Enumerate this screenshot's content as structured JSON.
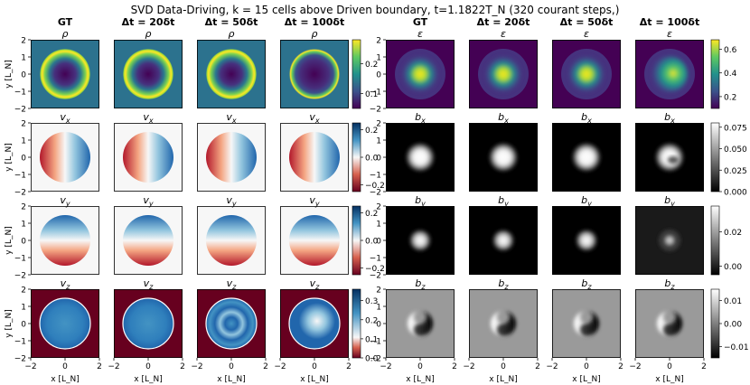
{
  "figure": {
    "title": "SVD Data-Driving, k = 15 cells above Driven boundary, t=1.1822T_N (320 courant steps,)"
  },
  "chart_data": {
    "type": "heatmap",
    "title": "SVD Data-Driving, k = 15 cells above Driven boundary, t=1.1822T_N (320 courant steps,)",
    "columns": [
      "GT",
      "Δt = 20δt",
      "Δt = 50δt",
      "Δt = 100δt",
      "GT",
      "Δt = 20δt",
      "Δt = 50δt",
      "Δt = 100δt"
    ],
    "xlabel": "x [L_N]",
    "ylabel": "y [L_N]",
    "xlim": [
      -2,
      2
    ],
    "ylim": [
      -2,
      2
    ],
    "xticks": [
      "−2",
      "0",
      "2"
    ],
    "yticks": [
      "2",
      "1",
      "0",
      "−1",
      "−2"
    ],
    "panel_rows": [
      {
        "left_var": "ρ",
        "right_var": "ε",
        "left_colorbar": {
          "cmap": "viridis",
          "ticks": [
            "0.2",
            "0.1"
          ],
          "range": [
            0.05,
            0.28
          ]
        },
        "right_colorbar": {
          "cmap": "viridis",
          "ticks": [
            "0.6",
            "0.4",
            "0.2"
          ],
          "range": [
            0.1,
            0.68
          ]
        }
      },
      {
        "left_var": "v_x",
        "right_var": "b_x",
        "left_colorbar": {
          "cmap": "RdBu",
          "ticks": [
            "0.2",
            "0.0",
            "−0.2"
          ],
          "range": [
            -0.25,
            0.25
          ]
        },
        "right_colorbar": {
          "cmap": "gray",
          "ticks": [
            "0.075",
            "0.050",
            "0.025",
            "0.000"
          ],
          "range": [
            0.0,
            0.08
          ]
        }
      },
      {
        "left_var": "v_y",
        "right_var": "b_y",
        "left_colorbar": {
          "cmap": "RdBu",
          "ticks": [
            "0.2",
            "0.0",
            "−0.2"
          ],
          "range": [
            -0.25,
            0.25
          ]
        },
        "right_colorbar": {
          "cmap": "gray",
          "ticks": [
            "0.02",
            "0.00"
          ],
          "range": [
            -0.005,
            0.035
          ]
        }
      },
      {
        "left_var": "v_z",
        "right_var": "b_z",
        "left_colorbar": {
          "cmap": "RdBu",
          "ticks": [
            "0.3",
            "0.2",
            "0.1",
            "0.0"
          ],
          "range": [
            0.0,
            0.36
          ]
        },
        "right_colorbar": {
          "cmap": "gray",
          "ticks": [
            "0.01",
            "0.00",
            "−0.01"
          ],
          "range": [
            -0.015,
            0.015
          ]
        }
      }
    ]
  }
}
